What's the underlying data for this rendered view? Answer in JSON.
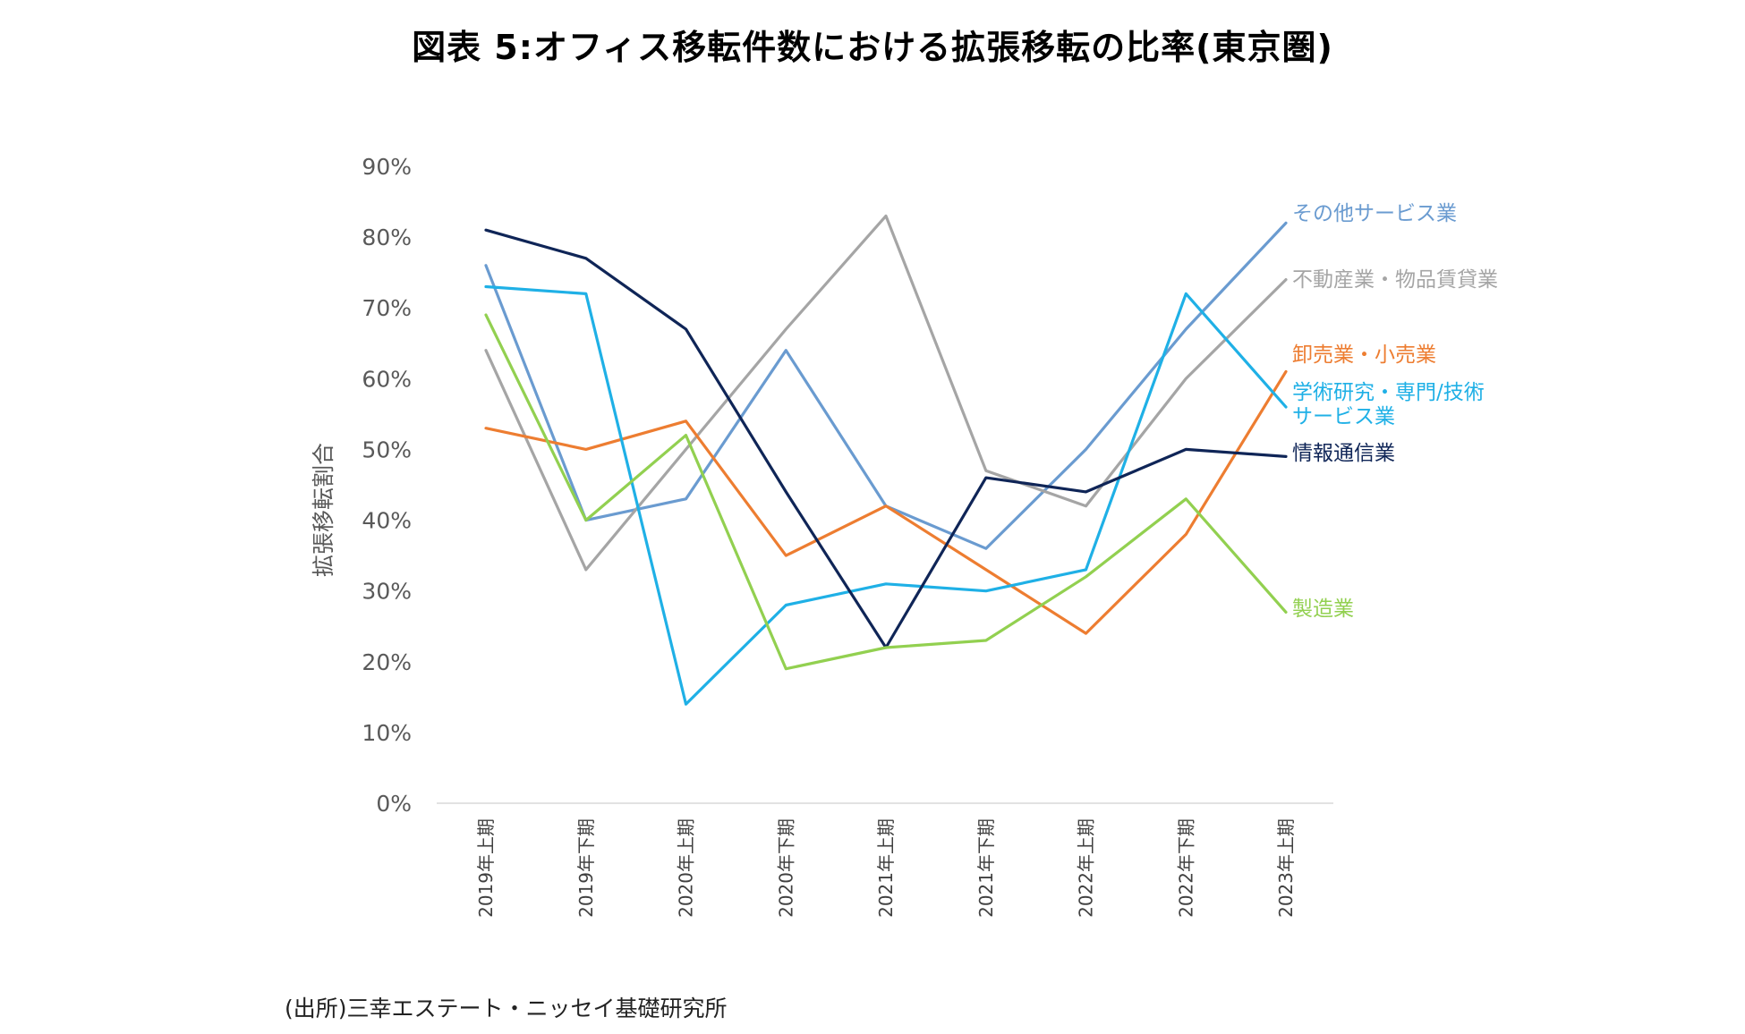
{
  "chart_data": {
    "type": "line",
    "title": "図表 5:オフィス移転件数における拡張移転の比率(東京圏)",
    "ylabel": "拡張移転割合",
    "xlabel": "",
    "ylim": [
      0,
      90
    ],
    "y_ticks": [
      0,
      10,
      20,
      30,
      40,
      50,
      60,
      70,
      80,
      90
    ],
    "y_tick_labels": [
      "0%",
      "10%",
      "20%",
      "30%",
      "40%",
      "50%",
      "60%",
      "70%",
      "80%",
      "90%"
    ],
    "categories": [
      "2019年上期",
      "2019年下期",
      "2020年上期",
      "2020年下期",
      "2021年上期",
      "2021年下期",
      "2022年上期",
      "2022年下期",
      "2023年上期"
    ],
    "grid": false,
    "legend": "inline labels at right end of each line",
    "series": [
      {
        "name": "その他サービス業",
        "label_lines": [
          "その他サービス業"
        ],
        "color": "#6A9BD0",
        "values": [
          76,
          40,
          43,
          64,
          42,
          36,
          50,
          67,
          82
        ]
      },
      {
        "name": "不動産業・物品賃貸業",
        "label_lines": [
          "不動産業・物品賃貸業"
        ],
        "color": "#A5A5A5",
        "values": [
          64,
          33,
          50,
          67,
          83,
          47,
          42,
          60,
          74
        ]
      },
      {
        "name": "卸売業・小売業",
        "label_lines": [
          "卸売業・小売業"
        ],
        "color": "#ED7D31",
        "values": [
          53,
          50,
          54,
          35,
          42,
          33,
          24,
          38,
          61
        ]
      },
      {
        "name": "学術研究・専門/技術サービス業",
        "label_lines": [
          "学術研究・専門/技術",
          "サービス業"
        ],
        "color": "#1FB0E6",
        "values": [
          73,
          72,
          14,
          28,
          31,
          30,
          33,
          72,
          56
        ]
      },
      {
        "name": "情報通信業",
        "label_lines": [
          "情報通信業"
        ],
        "color": "#0F2557",
        "values": [
          81,
          77,
          67,
          44,
          22,
          46,
          44,
          50,
          49
        ]
      },
      {
        "name": "製造業",
        "label_lines": [
          "製造業"
        ],
        "color": "#92D050",
        "values": [
          69,
          40,
          52,
          19,
          22,
          23,
          32,
          43,
          27
        ]
      }
    ]
  },
  "source_note": "(出所)三幸エステート・ニッセイ基礎研究所"
}
